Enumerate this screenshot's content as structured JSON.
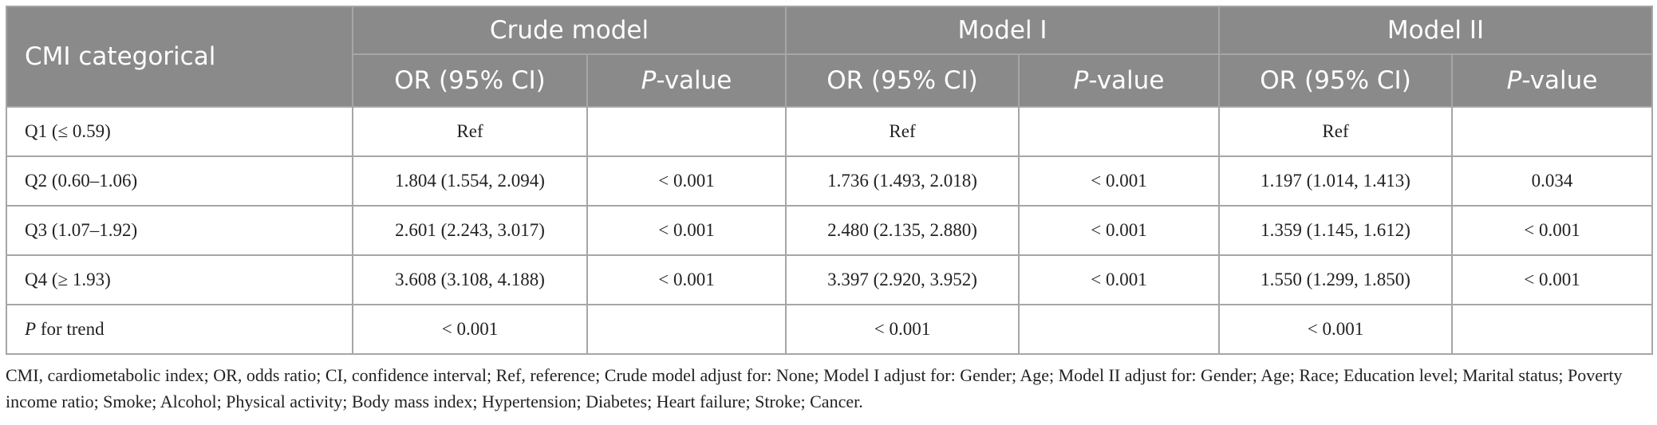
{
  "table": {
    "header": [
      "CMI categorical",
      "Crude model",
      "Model I",
      "Model II"
    ],
    "subheader": [
      {
        "text": "OR (95% CI)"
      },
      {
        "em": "P",
        "text": "-value"
      },
      {
        "text": "OR (95% CI)"
      },
      {
        "em": "P",
        "text": "-value"
      },
      {
        "text": "OR (95% CI)"
      },
      {
        "em": "P",
        "text": "-value"
      }
    ],
    "rows": [
      [
        {
          "text": "Q1 (≤ 0.59)"
        },
        "Ref",
        null,
        "Ref",
        null,
        "Ref",
        null
      ],
      [
        {
          "text": "Q2 (0.60–1.06)"
        },
        "1.804 (1.554, 2.094)",
        "< 0.001",
        "1.736 (1.493, 2.018)",
        "< 0.001",
        "1.197 (1.014, 1.413)",
        "0.034"
      ],
      [
        {
          "text": "Q3 (1.07–1.92)"
        },
        "2.601 (2.243, 3.017)",
        "< 0.001",
        "2.480 (2.135, 2.880)",
        "< 0.001",
        "1.359 (1.145, 1.612)",
        "< 0.001"
      ],
      [
        {
          "text": "Q4 (≥ 1.93)"
        },
        "3.608 (3.108, 4.188)",
        "< 0.001",
        "3.397 (2.920, 3.952)",
        "< 0.001",
        "1.550 (1.299, 1.850)",
        "< 0.001"
      ],
      [
        {
          "em": "P",
          "text": " for trend"
        },
        "< 0.001",
        null,
        "< 0.001",
        null,
        "< 0.001",
        null
      ]
    ],
    "footnote": "CMI, cardiometabolic index; OR, odds ratio; CI, confidence interval; Ref, reference; Crude model adjust for: None; Model I adjust for: Gender; Age; Model II adjust for: Gender; Age; Race; Education level; Marital status; Poverty income ratio; Smoke; Alcohol; Physical activity; Body mass index; Hypertension; Diabetes; Heart failure; Stroke; Cancer."
  }
}
